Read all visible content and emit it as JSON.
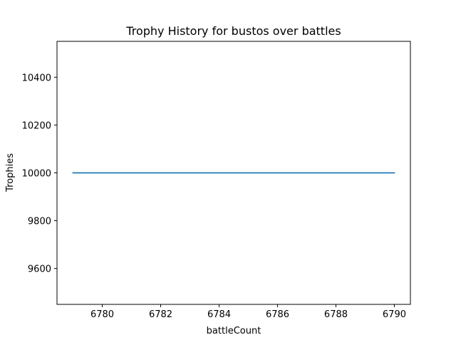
{
  "chart_data": {
    "type": "line",
    "title": "Trophy History for bustos over battles",
    "xlabel": "battleCount",
    "ylabel": "Trophies",
    "xlim": [
      6778.45,
      6790.55
    ],
    "ylim": [
      9450,
      10550
    ],
    "xticks": [
      6780,
      6782,
      6784,
      6786,
      6788,
      6790
    ],
    "yticks": [
      9600,
      9800,
      10000,
      10200,
      10400
    ],
    "grid": false,
    "legend": "none",
    "series": [
      {
        "color": "#1f77b4",
        "x": [
          6779,
          6780,
          6781,
          6782,
          6783,
          6784,
          6785,
          6786,
          6787,
          6788,
          6789,
          6790
        ],
        "y": [
          10000,
          10000,
          10000,
          10000,
          10000,
          10000,
          10000,
          10000,
          10000,
          10000,
          10000,
          10000
        ]
      }
    ]
  }
}
